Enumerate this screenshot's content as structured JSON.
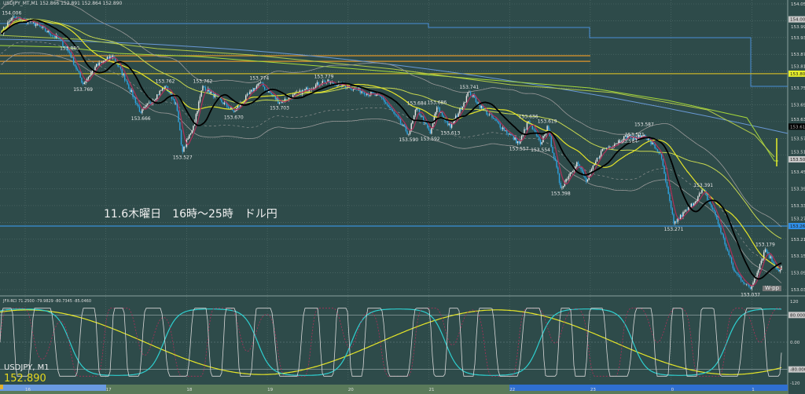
{
  "window": {
    "title": "USDJPY_MT,M1  152.866 152.891 152.864 152.890",
    "symbol_label": "USDJPY, M1",
    "last_price": "152.890",
    "annotation": "11.6木曜日　16時～25時　ドル円",
    "indicator_label": "JFX-RCI 71.2500 -79.9829 -80.7345 -85.0460",
    "wpp_badge": "W-pp"
  },
  "colors": {
    "background": "#2e4b4a",
    "bull_candle": "#e6e6e6",
    "bear_candle": "#2fa3e0",
    "ma_black": "#000000",
    "ma_red": "#b0305a",
    "ma_yellow": "#e6e628",
    "ma_green": "#a6d83a",
    "band_gray": "#9a9a9a",
    "level_orange": "#e0962a",
    "level_blue": "#4a8fd8",
    "rci_fast": "#d8d8d8",
    "rci_mid": "#2ed0d0",
    "rci_slow": "#e6e628",
    "rci_dotted": "#b0305a",
    "current_price_box": "#e6f02a"
  },
  "chart_data": {
    "type": "candlestick",
    "symbol": "USDJPY",
    "timeframe": "M1",
    "price_axis": {
      "ticks": [
        "154.055",
        "153.995",
        "153.935",
        "153.875",
        "153.815",
        "153.755",
        "153.695",
        "153.635",
        "153.575",
        "153.515",
        "153.455",
        "153.395",
        "153.335",
        "153.275",
        "153.215",
        "153.155",
        "153.095",
        "153.035"
      ],
      "range": [
        153.035,
        154.055
      ],
      "markers": [
        {
          "value": "154.000",
          "color": "#c8c8c8"
        },
        {
          "value": "153.806",
          "color": "#e6f02a"
        },
        {
          "value": "153.617",
          "color": "#000000"
        },
        {
          "value": "153.500",
          "color": "#c8c8c8"
        },
        {
          "value": "153.262",
          "color": "#2f8fe8"
        }
      ]
    },
    "time_axis": {
      "ticks": [
        "16",
        "17",
        "18",
        "19",
        "20",
        "21",
        "22",
        "23",
        "0",
        "1"
      ]
    },
    "indicator_axis": {
      "ticks": [
        "120",
        "80.0000",
        "0.00",
        "-80.0000",
        "-120"
      ],
      "range": [
        -120,
        120
      ]
    },
    "price_path": [
      [
        "15:42",
        153.95
      ],
      [
        "15:50",
        154.006
      ],
      [
        "16:05",
        153.99
      ],
      [
        "16:25",
        153.93
      ],
      [
        "16:33",
        153.88
      ],
      [
        "16:43",
        153.769
      ],
      [
        "16:52",
        153.83
      ],
      [
        "17:05",
        153.87
      ],
      [
        "17:15",
        153.78
      ],
      [
        "17:26",
        153.666
      ],
      [
        "17:44",
        153.762
      ],
      [
        "17:52",
        153.7
      ],
      [
        "17:57",
        153.527
      ],
      [
        "18:05",
        153.62
      ],
      [
        "18:12",
        153.762
      ],
      [
        "18:35",
        153.67
      ],
      [
        "18:54",
        153.774
      ],
      [
        "19:09",
        153.703
      ],
      [
        "19:42",
        153.779
      ],
      [
        "20:00",
        153.76
      ],
      [
        "20:25",
        153.72
      ],
      [
        "20:45",
        153.59
      ],
      [
        "20:51",
        153.684
      ],
      [
        "21:01",
        153.592
      ],
      [
        "21:06",
        153.686
      ],
      [
        "21:16",
        153.613
      ],
      [
        "21:30",
        153.741
      ],
      [
        "21:40",
        153.68
      ],
      [
        "22:07",
        153.557
      ],
      [
        "22:14",
        153.636
      ],
      [
        "22:23",
        153.554
      ],
      [
        "22:28",
        153.619
      ],
      [
        "22:38",
        153.398
      ],
      [
        "22:50",
        153.49
      ],
      [
        "22:57",
        153.42
      ],
      [
        "23:08",
        153.53
      ],
      [
        "23:28",
        153.584
      ],
      [
        "23:33",
        153.571
      ],
      [
        "23:40",
        153.587
      ],
      [
        "23:52",
        153.52
      ],
      [
        "0:02",
        153.271
      ],
      [
        "0:14",
        153.33
      ],
      [
        "0:24",
        153.391
      ],
      [
        "0:33",
        153.3
      ],
      [
        "0:47",
        153.1
      ],
      [
        "0:59",
        153.037
      ],
      [
        "1:10",
        153.179
      ],
      [
        "1:20",
        153.1
      ],
      [
        "1:22",
        153.12
      ]
    ],
    "swing_labels": [
      [
        "15:50",
        "154.006",
        "high"
      ],
      [
        "16:33",
        "153.880",
        "high"
      ],
      [
        "16:43",
        "153.769",
        "low"
      ],
      [
        "17:26",
        "153.666",
        "low"
      ],
      [
        "17:44",
        "153.762",
        "high"
      ],
      [
        "17:57",
        "153.527",
        "low"
      ],
      [
        "18:12",
        "153.762",
        "high"
      ],
      [
        "18:35",
        "153.670",
        "low"
      ],
      [
        "18:54",
        "153.774",
        "high"
      ],
      [
        "19:09",
        "153.703",
        "low"
      ],
      [
        "19:42",
        "153.779",
        "high"
      ],
      [
        "20:45",
        "153.590",
        "low"
      ],
      [
        "20:51",
        "153.684",
        "high"
      ],
      [
        "21:01",
        "153.592",
        "low"
      ],
      [
        "21:06",
        "153.686",
        "high"
      ],
      [
        "21:16",
        "153.613",
        "low"
      ],
      [
        "21:30",
        "153.741",
        "high"
      ],
      [
        "22:07",
        "153.557",
        "low"
      ],
      [
        "22:14",
        "153.636",
        "high"
      ],
      [
        "22:23",
        "153.554",
        "low"
      ],
      [
        "22:28",
        "153.619",
        "high"
      ],
      [
        "22:38",
        "153.398",
        "low"
      ],
      [
        "23:28",
        "153.584",
        "low"
      ],
      [
        "23:33",
        "153.571",
        "high"
      ],
      [
        "23:40",
        "153.587",
        "high"
      ],
      [
        "0:02",
        "153.271",
        "low"
      ],
      [
        "0:24",
        "153.391",
        "high"
      ],
      [
        "0:59",
        "153.037",
        "low"
      ],
      [
        "1:10",
        "153.179",
        "high"
      ]
    ],
    "levels": [
      {
        "value": 153.87,
        "color": "#e0962a",
        "until": "23:00"
      },
      {
        "value": 153.85,
        "color": "#e0962a",
        "until": "23:00"
      },
      {
        "value": 153.806,
        "color": "#c8b428"
      },
      {
        "value": 153.262,
        "color": "#3a8fd8"
      }
    ]
  }
}
